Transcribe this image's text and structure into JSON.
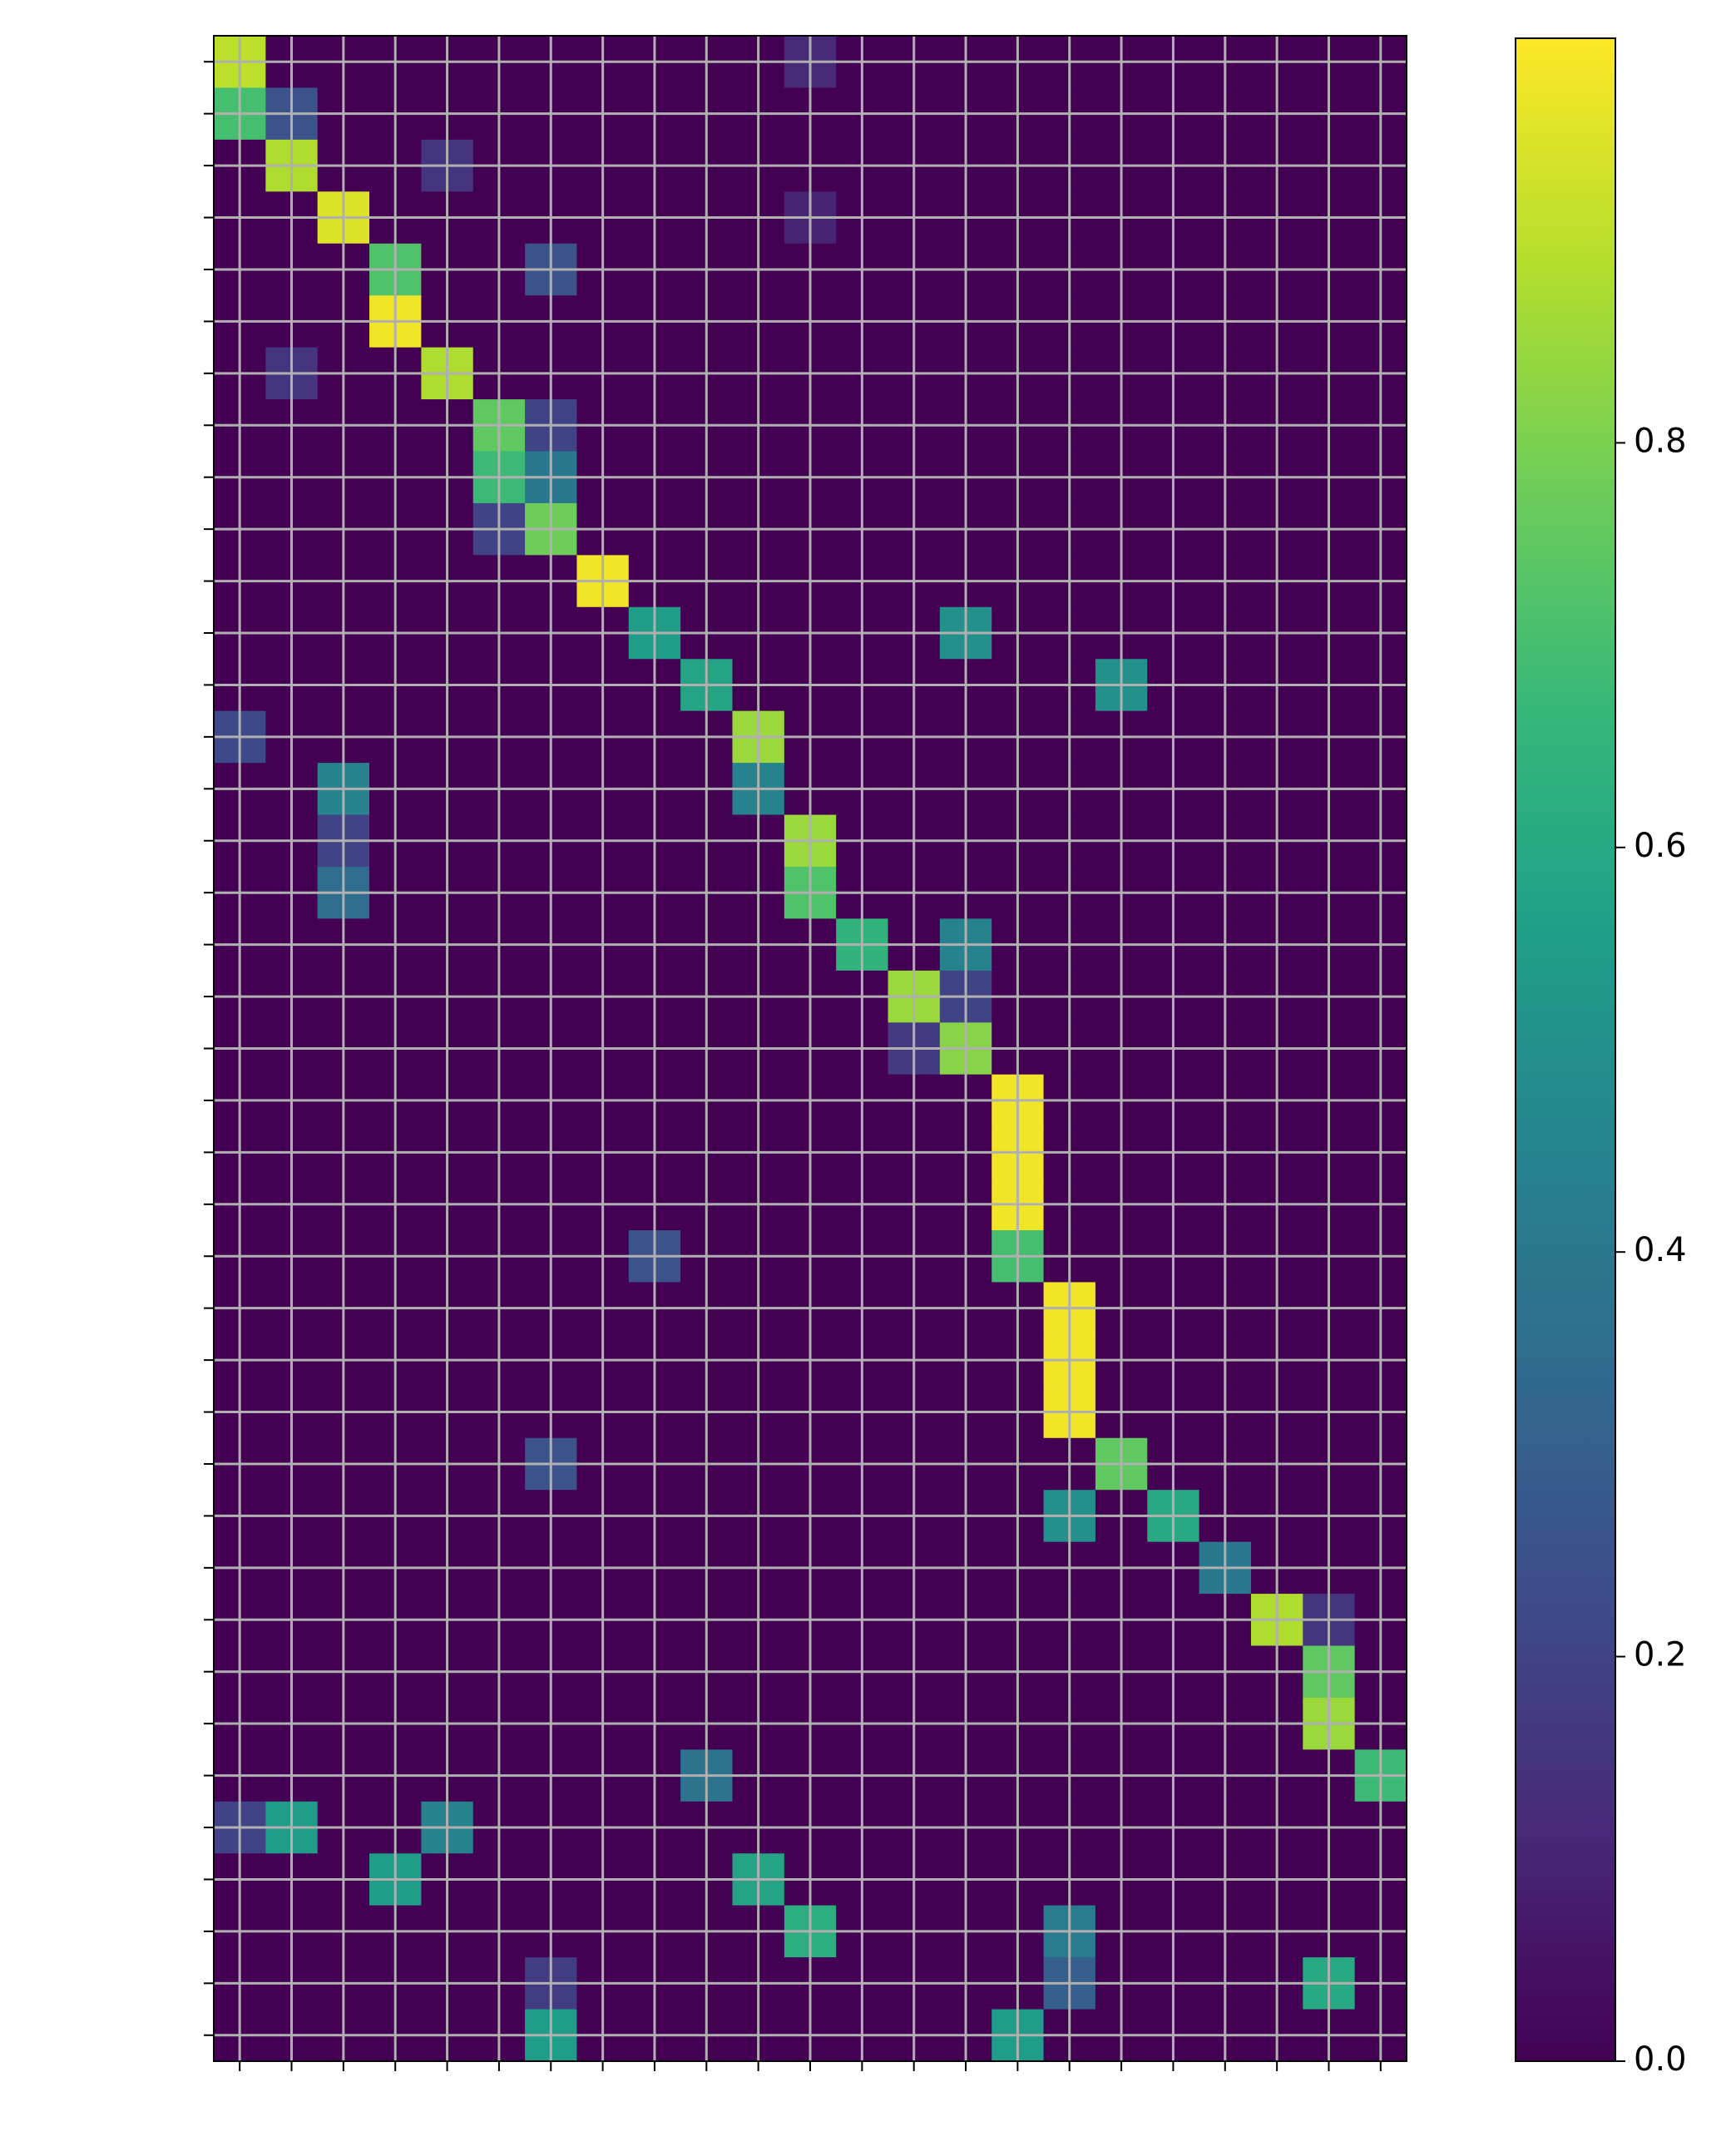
{
  "chart_data": {
    "type": "heatmap",
    "colormap": "viridis",
    "grid": true,
    "x_categories": [
      null,
      null,
      null,
      null,
      null,
      null,
      null,
      null,
      null,
      null,
      null,
      null,
      null,
      null,
      null,
      null,
      null,
      null,
      null,
      null,
      null,
      null,
      null
    ],
    "y_categories": [
      null,
      null,
      null,
      null,
      null,
      null,
      null,
      null,
      null,
      null,
      null,
      null,
      null,
      null,
      null,
      null,
      null,
      null,
      null,
      null,
      null,
      null,
      null,
      null,
      null,
      null,
      null,
      null,
      null,
      null,
      null,
      null,
      null,
      null,
      null,
      null,
      null,
      null,
      null
    ],
    "vlim": [
      0,
      1.0
    ],
    "cticks": [
      {
        "value": 0,
        "label": "0.0"
      },
      0.2,
      0.4,
      0.6,
      0.8
    ],
    "values": [
      [
        0.9,
        0,
        0,
        0,
        0,
        0,
        0,
        0,
        0,
        0,
        0,
        0.12,
        0,
        0,
        0,
        0,
        0,
        0,
        0,
        0,
        0,
        0,
        0
      ],
      [
        0.7,
        0.25,
        0,
        0,
        0,
        0,
        0,
        0,
        0,
        0,
        0,
        0,
        0,
        0,
        0,
        0,
        0,
        0,
        0,
        0,
        0,
        0,
        0
      ],
      [
        0,
        0.88,
        0,
        0,
        0.15,
        0,
        0,
        0,
        0,
        0,
        0,
        0,
        0,
        0,
        0,
        0,
        0,
        0,
        0,
        0,
        0,
        0,
        0
      ],
      [
        0,
        0,
        0.95,
        0,
        0,
        0,
        0,
        0,
        0,
        0,
        0,
        0.1,
        0,
        0,
        0,
        0,
        0,
        0,
        0,
        0,
        0,
        0,
        0
      ],
      [
        0,
        0,
        0,
        0.72,
        0,
        0,
        0.25,
        0,
        0,
        0,
        0,
        0,
        0,
        0,
        0,
        0,
        0,
        0,
        0,
        0,
        0,
        0,
        0
      ],
      [
        0,
        0,
        0,
        0.98,
        0,
        0,
        0,
        0,
        0,
        0,
        0,
        0,
        0,
        0,
        0,
        0,
        0,
        0,
        0,
        0,
        0,
        0,
        0
      ],
      [
        0,
        0.15,
        0,
        0,
        0.88,
        0,
        0,
        0,
        0,
        0,
        0,
        0,
        0,
        0,
        0,
        0,
        0,
        0,
        0,
        0,
        0,
        0,
        0
      ],
      [
        0,
        0,
        0,
        0,
        0,
        0.75,
        0.2,
        0,
        0,
        0,
        0,
        0,
        0,
        0,
        0,
        0,
        0,
        0,
        0,
        0,
        0,
        0,
        0
      ],
      [
        0,
        0,
        0,
        0,
        0,
        0.68,
        0.4,
        0,
        0,
        0,
        0,
        0,
        0,
        0,
        0,
        0,
        0,
        0,
        0,
        0,
        0,
        0,
        0
      ],
      [
        0,
        0,
        0,
        0,
        0,
        0.2,
        0.78,
        0,
        0,
        0,
        0,
        0,
        0,
        0,
        0,
        0,
        0,
        0,
        0,
        0,
        0,
        0,
        0
      ],
      [
        0,
        0,
        0,
        0,
        0,
        0,
        0,
        0.98,
        0,
        0,
        0,
        0,
        0,
        0,
        0,
        0,
        0,
        0,
        0,
        0,
        0,
        0,
        0
      ],
      [
        0,
        0,
        0,
        0,
        0,
        0,
        0,
        0,
        0.55,
        0,
        0,
        0,
        0,
        0,
        0.5,
        0,
        0,
        0,
        0,
        0,
        0,
        0,
        0
      ],
      [
        0,
        0,
        0,
        0,
        0,
        0,
        0,
        0,
        0,
        0.58,
        0,
        0,
        0,
        0,
        0,
        0,
        0,
        0.5,
        0,
        0,
        0,
        0,
        0
      ],
      [
        0.22,
        0,
        0,
        0,
        0,
        0,
        0,
        0,
        0,
        0,
        0.85,
        0,
        0,
        0,
        0,
        0,
        0,
        0,
        0,
        0,
        0,
        0,
        0
      ],
      [
        0,
        0,
        0.45,
        0,
        0,
        0,
        0,
        0,
        0,
        0,
        0.45,
        0,
        0,
        0,
        0,
        0,
        0,
        0,
        0,
        0,
        0,
        0,
        0
      ],
      [
        0,
        0,
        0.2,
        0,
        0,
        0,
        0,
        0,
        0,
        0,
        0,
        0.85,
        0,
        0,
        0,
        0,
        0,
        0,
        0,
        0,
        0,
        0,
        0
      ],
      [
        0,
        0,
        0.35,
        0,
        0,
        0,
        0,
        0,
        0,
        0,
        0,
        0.72,
        0,
        0,
        0,
        0,
        0,
        0,
        0,
        0,
        0,
        0,
        0
      ],
      [
        0,
        0,
        0,
        0,
        0,
        0,
        0,
        0,
        0,
        0,
        0,
        0,
        0.65,
        0,
        0.45,
        0,
        0,
        0,
        0,
        0,
        0,
        0,
        0
      ],
      [
        0,
        0,
        0,
        0,
        0,
        0,
        0,
        0,
        0,
        0,
        0,
        0,
        0,
        0.85,
        0.2,
        0,
        0,
        0,
        0,
        0,
        0,
        0,
        0
      ],
      [
        0,
        0,
        0,
        0,
        0,
        0,
        0,
        0,
        0,
        0,
        0,
        0,
        0,
        0.17,
        0.82,
        0,
        0,
        0,
        0,
        0,
        0,
        0,
        0
      ],
      [
        0,
        0,
        0,
        0,
        0,
        0,
        0,
        0,
        0,
        0,
        0,
        0,
        0,
        0,
        0,
        0.98,
        0,
        0,
        0,
        0,
        0,
        0,
        0
      ],
      [
        0,
        0,
        0,
        0,
        0,
        0,
        0,
        0,
        0,
        0,
        0,
        0,
        0,
        0,
        0,
        0.98,
        0,
        0,
        0,
        0,
        0,
        0,
        0
      ],
      [
        0,
        0,
        0,
        0,
        0,
        0,
        0,
        0,
        0,
        0,
        0,
        0,
        0,
        0,
        0,
        0.98,
        0,
        0,
        0,
        0,
        0,
        0,
        0
      ],
      [
        0,
        0,
        0,
        0,
        0,
        0,
        0,
        0,
        0.25,
        0,
        0,
        0,
        0,
        0,
        0,
        0.7,
        0,
        0,
        0,
        0,
        0,
        0,
        0
      ],
      [
        0,
        0,
        0,
        0,
        0,
        0,
        0,
        0,
        0,
        0,
        0,
        0,
        0,
        0,
        0,
        0,
        0.98,
        0,
        0,
        0,
        0,
        0,
        0
      ],
      [
        0,
        0,
        0,
        0,
        0,
        0,
        0,
        0,
        0,
        0,
        0,
        0,
        0,
        0,
        0,
        0,
        0.98,
        0,
        0,
        0,
        0,
        0,
        0
      ],
      [
        0,
        0,
        0,
        0,
        0,
        0,
        0,
        0,
        0,
        0,
        0,
        0,
        0,
        0,
        0,
        0,
        0.98,
        0,
        0,
        0,
        0,
        0,
        0
      ],
      [
        0,
        0,
        0,
        0,
        0,
        0,
        0.25,
        0,
        0,
        0,
        0,
        0,
        0,
        0,
        0,
        0,
        0,
        0.75,
        0,
        0,
        0,
        0,
        0
      ],
      [
        0,
        0,
        0,
        0,
        0,
        0,
        0,
        0,
        0,
        0,
        0,
        0,
        0,
        0,
        0,
        0,
        0.5,
        0,
        0.6,
        0,
        0,
        0,
        0
      ],
      [
        0,
        0,
        0,
        0,
        0,
        0,
        0,
        0,
        0,
        0,
        0,
        0,
        0,
        0,
        0,
        0,
        0,
        0,
        0,
        0.4,
        0,
        0,
        0
      ],
      [
        0,
        0,
        0,
        0,
        0,
        0,
        0,
        0,
        0,
        0,
        0,
        0,
        0,
        0,
        0,
        0,
        0,
        0,
        0,
        0,
        0.88,
        0.15,
        0
      ],
      [
        0,
        0,
        0,
        0,
        0,
        0,
        0,
        0,
        0,
        0,
        0,
        0,
        0,
        0,
        0,
        0,
        0,
        0,
        0,
        0,
        0,
        0.75,
        0
      ],
      [
        0,
        0,
        0,
        0,
        0,
        0,
        0,
        0,
        0,
        0,
        0,
        0,
        0,
        0,
        0,
        0,
        0,
        0,
        0,
        0,
        0,
        0.85,
        0
      ],
      [
        0,
        0,
        0,
        0,
        0,
        0,
        0,
        0,
        0,
        0.38,
        0,
        0,
        0,
        0,
        0,
        0,
        0,
        0,
        0,
        0,
        0,
        0,
        0.68
      ],
      [
        0.2,
        0.55,
        0,
        0,
        0.45,
        0,
        0,
        0,
        0,
        0,
        0,
        0,
        0,
        0,
        0,
        0,
        0,
        0,
        0,
        0,
        0,
        0,
        0
      ],
      [
        0,
        0,
        0,
        0.55,
        0,
        0,
        0,
        0,
        0,
        0,
        0.58,
        0,
        0,
        0,
        0,
        0,
        0,
        0,
        0,
        0,
        0,
        0,
        0
      ],
      [
        0,
        0,
        0,
        0,
        0,
        0,
        0,
        0,
        0,
        0,
        0,
        0.62,
        0,
        0,
        0,
        0,
        0.42,
        0,
        0,
        0,
        0,
        0,
        0
      ],
      [
        0,
        0,
        0,
        0,
        0,
        0,
        0.18,
        0,
        0,
        0,
        0,
        0,
        0,
        0,
        0,
        0,
        0.3,
        0,
        0,
        0,
        0,
        0.6,
        0
      ],
      [
        0,
        0,
        0,
        0,
        0,
        0,
        0.55,
        0,
        0,
        0,
        0,
        0,
        0,
        0,
        0,
        0.55,
        0,
        0,
        0,
        0,
        0,
        0,
        0
      ]
    ]
  }
}
